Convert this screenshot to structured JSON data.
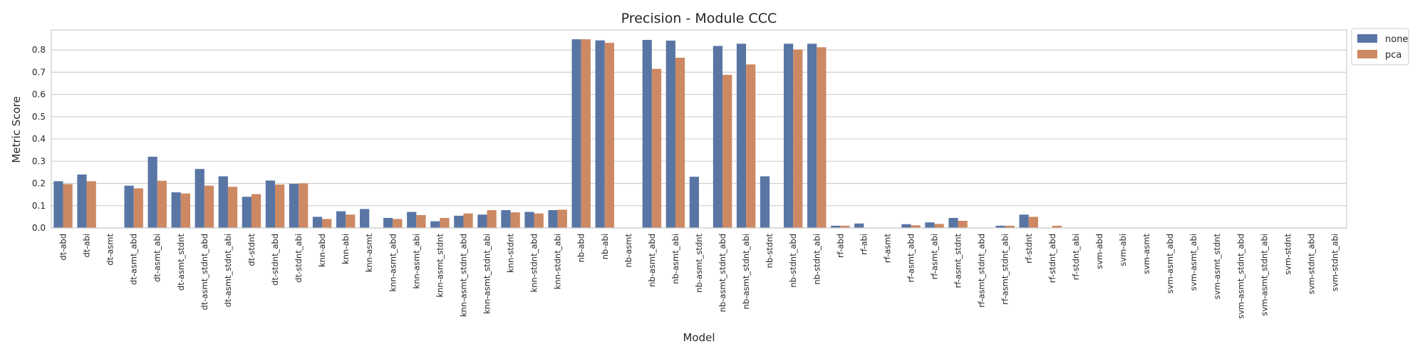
{
  "chart_data": {
    "type": "bar",
    "title": "Precision - Module CCC",
    "xlabel": "Model",
    "ylabel": "Metric Score",
    "ylim": [
      0,
      0.89
    ],
    "yticks": [
      "0.0",
      "0.1",
      "0.2",
      "0.3",
      "0.4",
      "0.5",
      "0.6",
      "0.7",
      "0.8"
    ],
    "grid": true,
    "legend_position": "outside-top-right",
    "categories": [
      "dt-abd",
      "dt-abi",
      "dt-asmt",
      "dt-asmt_abd",
      "dt-asmt_abi",
      "dt-asmt_stdnt",
      "dt-asmt_stdnt_abd",
      "dt-asmt_stdnt_abi",
      "dt-stdnt",
      "dt-stdnt_abd",
      "dt-stdnt_abi",
      "knn-abd",
      "knn-abi",
      "knn-asmt",
      "knn-asmt_abd",
      "knn-asmt_abi",
      "knn-asmt_stdnt",
      "knn-asmt_stdnt_abd",
      "knn-asmt_stdnt_abi",
      "knn-stdnt",
      "knn-stdnt_abd",
      "knn-stdnt_abi",
      "nb-abd",
      "nb-abi",
      "nb-asmt",
      "nb-asmt_abd",
      "nb-asmt_abi",
      "nb-asmt_stdnt",
      "nb-asmt_stdnt_abd",
      "nb-asmt_stdnt_abi",
      "nb-stdnt",
      "nb-stdnt_abd",
      "nb-stdnt_abi",
      "rf-abd",
      "rf-abi",
      "rf-asmt",
      "rf-asmt_abd",
      "rf-asmt_abi",
      "rf-asmt_stdnt",
      "rf-asmt_stdnt_abd",
      "rf-asmt_stdnt_abi",
      "rf-stdnt",
      "rf-stdnt_abd",
      "rf-stdnt_abi",
      "svm-abd",
      "svm-abi",
      "svm-asmt",
      "svm-asmt_abd",
      "svm-asmt_abi",
      "svm-asmt_stdnt",
      "svm-asmt_stdnt_abd",
      "svm-asmt_stdnt_abi",
      "svm-stdnt",
      "svm-stdnt_abd",
      "svm-stdnt_abi"
    ],
    "series": [
      {
        "name": "none",
        "color": "#5875a4",
        "values": [
          0.21,
          0.24,
          0,
          0.19,
          0.32,
          0.16,
          0.265,
          0.232,
          0.14,
          0.213,
          0.198,
          0.05,
          0.075,
          0.085,
          0.045,
          0.072,
          0.03,
          0.055,
          0.06,
          0.08,
          0.072,
          0.08,
          0.848,
          0.843,
          0,
          0.845,
          0.842,
          0.23,
          0.818,
          0.828,
          0.232,
          0.828,
          0.828,
          0.01,
          0.02,
          0,
          0.017,
          0.025,
          0.045,
          0,
          0.01,
          0.06,
          0,
          0,
          0,
          0,
          0,
          0,
          0,
          0,
          0,
          0,
          0,
          0,
          0
        ]
      },
      {
        "name": "pca",
        "color": "#cc8963",
        "values": [
          0.197,
          0.21,
          0,
          0.178,
          0.212,
          0.155,
          0.19,
          0.185,
          0.152,
          0.195,
          0.2,
          0.04,
          0.06,
          0,
          0.04,
          0.058,
          0.045,
          0.065,
          0.08,
          0.07,
          0.065,
          0.082,
          0.848,
          0.832,
          0,
          0.715,
          0.765,
          0,
          0.688,
          0.735,
          0,
          0.802,
          0.812,
          0.01,
          0,
          0,
          0.012,
          0.018,
          0.032,
          0,
          0.01,
          0.05,
          0.01,
          0,
          0,
          0,
          0,
          0,
          0,
          0,
          0,
          0,
          0,
          0,
          0
        ]
      }
    ]
  }
}
